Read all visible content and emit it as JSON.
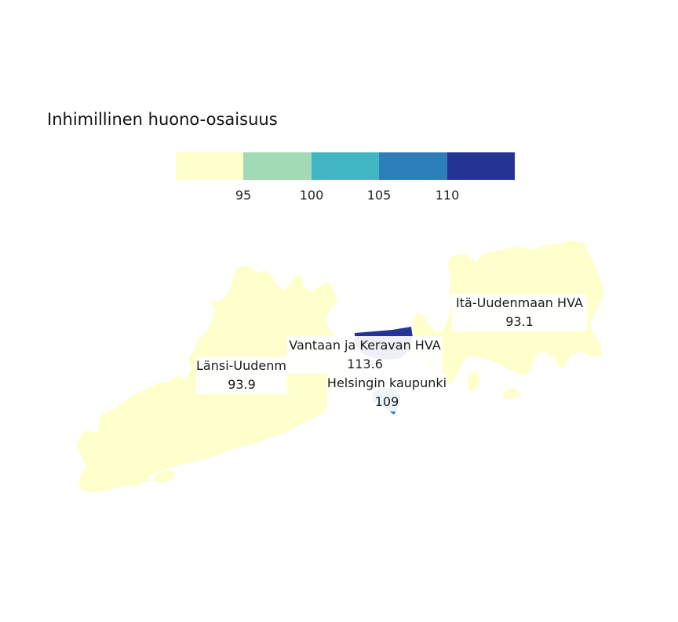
{
  "map": {
    "title": "Inhimillinen huono-osaisuus",
    "legend": {
      "colors": [
        "#ffffcc",
        "#a1dab4",
        "#41b6c4",
        "#2c7fb8",
        "#253494"
      ],
      "ticks": [
        "95",
        "100",
        "105",
        "110"
      ]
    },
    "regions": [
      {
        "name": "Länsi-Uudenmaan HVA",
        "display_name": "Länsi-Uudenma",
        "value": "93.9",
        "color": "#ffffcc"
      },
      {
        "name": "Vantaan ja Keravan HVA",
        "value": "113.6",
        "color": "#253494"
      },
      {
        "name": "Helsingin kaupunki",
        "value": "109",
        "color": "#2c7fb8"
      },
      {
        "name": "Itä-Uudenmaan HVA",
        "value": "93.1",
        "color": "#ffffcc"
      }
    ]
  }
}
